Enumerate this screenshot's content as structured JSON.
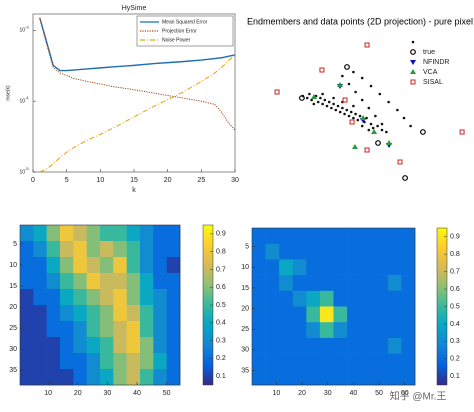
{
  "chart_data": [
    {
      "type": "line",
      "title": "HySime",
      "xlabel": "k",
      "ylabel": "mse(k)",
      "ylog": true,
      "x": [
        1,
        2,
        3,
        4,
        5,
        6,
        8,
        10,
        12,
        15,
        18,
        20,
        22,
        25,
        27,
        28,
        29,
        30
      ],
      "xlim": [
        0,
        30
      ],
      "xticks": [
        0,
        5,
        10,
        15,
        20,
        25,
        30
      ],
      "ylim": [
        1e-05,
        0.0017
      ],
      "yticks": [
        {
          "value": 1e-05,
          "label": "10",
          "exponent": "-5"
        },
        {
          "value": 0.0001,
          "label": "10",
          "exponent": "-4"
        },
        {
          "value": 0.001,
          "label": "10",
          "exponent": "-3"
        }
      ],
      "series": [
        {
          "name": "Mean Squared Error",
          "color": "#1f6fb0",
          "style": "solid",
          "values": [
            0.0015,
            0.0007,
            0.00032,
            0.00027,
            0.00027,
            0.000275,
            0.000285,
            0.000295,
            0.000305,
            0.00032,
            0.00034,
            0.00035,
            0.00036,
            0.00038,
            0.0004,
            0.00041,
            0.00043,
            0.00045
          ]
        },
        {
          "name": "Projection Error",
          "color": "#9c4a1a",
          "style": "dotted",
          "values": [
            0.0015,
            0.00065,
            0.0003,
            0.00025,
            0.00023,
            0.00021,
            0.00019,
            0.000175,
            0.00016,
            0.000145,
            0.00013,
            0.00012,
            0.000112,
            0.0001,
            9e-05,
            7e-05,
            5e-05,
            3.9e-05
          ]
        },
        {
          "name": "Noise Power",
          "color": "#e0a010",
          "style": "dashdot",
          "values": [
            1e-05,
            1.1e-05,
            1.3e-05,
            1.6e-05,
            1.9e-05,
            2.2e-05,
            2.8e-05,
            3.4e-05,
            4.2e-05,
            6e-05,
            8.5e-05,
            0.000105,
            0.00013,
            0.00019,
            0.00025,
            0.0003,
            0.00037,
            0.00045
          ]
        }
      ]
    },
    {
      "type": "scatter",
      "title": "Endmembers and data points (2D projection) - pure pixel",
      "xlim": [
        0,
        100
      ],
      "ylim": [
        0,
        100
      ],
      "series": [
        {
          "marker": "dot",
          "color": "#111111",
          "x": [
            24,
            26,
            27,
            28,
            30,
            31,
            32,
            33,
            34,
            35,
            36,
            37,
            38,
            39,
            40,
            41,
            42,
            43,
            44,
            45,
            46,
            47,
            48,
            49,
            50,
            52,
            53,
            55,
            56,
            58,
            60,
            29,
            33,
            38,
            42,
            47,
            51,
            54,
            47,
            51,
            55,
            59,
            63,
            67,
            70,
            73,
            42,
            45,
            48,
            51,
            54,
            57,
            60,
            62
          ],
          "y": [
            52,
            51,
            53,
            50,
            52,
            49,
            51,
            48,
            50,
            47,
            49,
            46,
            48,
            45,
            47,
            44,
            46,
            43,
            45,
            42,
            44,
            41,
            43,
            40,
            42,
            39,
            41,
            38,
            36,
            37,
            35,
            48,
            53,
            51,
            49,
            47,
            37,
            35,
            64,
            61,
            57,
            53,
            49,
            45,
            41,
            37,
            62,
            58,
            54,
            50,
            46,
            42,
            38,
            34
          ]
        },
        {
          "name": "true",
          "marker": "circle",
          "color": "#000000",
          "x": [
            44.1,
            23.6,
            78.6,
            70.5,
            58.2
          ],
          "y": [
            66.5,
            51,
            34,
            11,
            28.5
          ]
        },
        {
          "name": "NFINDR",
          "marker": "triangle-down",
          "color": "#1010c0",
          "x": [
            40.9,
            51.4,
            63.2
          ],
          "y": [
            57,
            40,
            27.5
          ]
        },
        {
          "name": "VCA",
          "marker": "triangle-up",
          "color": "#2a9a3a",
          "x": [
            29.1,
            40.9,
            51.4,
            56.4,
            63.2,
            47.7
          ],
          "y": [
            51.5,
            57.5,
            41,
            34,
            28.5,
            26.5
          ]
        },
        {
          "name": "SISAL",
          "marker": "square",
          "color": "#d02020",
          "x": [
            53.2,
            32.7,
            12.3,
            43.2,
            46.4,
            96.4,
            53.2,
            68.2
          ],
          "y": [
            77.5,
            65,
            54,
            50,
            39,
            34,
            25,
            19
          ]
        }
      ]
    },
    {
      "type": "heatmap",
      "xlim": [
        0.5,
        54.5
      ],
      "ylim": [
        0.5,
        38.5
      ],
      "xticks": [
        10,
        20,
        30,
        40,
        50
      ],
      "yticks": [
        5,
        10,
        15,
        20,
        25,
        30,
        35
      ],
      "clim": [
        0.05,
        0.95
      ],
      "colorbar_ticks": [
        0.1,
        0.2,
        0.3,
        0.4,
        0.5,
        0.6,
        0.7,
        0.8,
        0.9
      ],
      "z": [
        [
          0.3,
          0.4,
          0.6,
          0.8,
          0.7,
          0.6,
          0.5,
          0.5,
          0.4,
          0.3,
          0.2,
          0.2
        ],
        [
          0.2,
          0.3,
          0.5,
          0.7,
          0.8,
          0.6,
          0.7,
          0.6,
          0.5,
          0.3,
          0.2,
          0.2
        ],
        [
          0.2,
          0.2,
          0.4,
          0.6,
          0.8,
          0.7,
          0.6,
          0.8,
          0.5,
          0.3,
          0.2,
          0.1
        ],
        [
          0.2,
          0.2,
          0.3,
          0.5,
          0.6,
          0.8,
          0.7,
          0.7,
          0.6,
          0.4,
          0.2,
          0.2
        ],
        [
          0.1,
          0.2,
          0.2,
          0.4,
          0.5,
          0.6,
          0.7,
          0.8,
          0.6,
          0.4,
          0.3,
          0.2
        ],
        [
          0.1,
          0.1,
          0.2,
          0.3,
          0.4,
          0.5,
          0.6,
          0.8,
          0.7,
          0.5,
          0.3,
          0.2
        ],
        [
          0.1,
          0.1,
          0.2,
          0.2,
          0.3,
          0.5,
          0.6,
          0.7,
          0.8,
          0.5,
          0.3,
          0.2
        ],
        [
          0.1,
          0.1,
          0.1,
          0.2,
          0.3,
          0.4,
          0.5,
          0.7,
          0.8,
          0.6,
          0.3,
          0.2
        ],
        [
          0.1,
          0.1,
          0.1,
          0.2,
          0.2,
          0.3,
          0.5,
          0.6,
          0.7,
          0.6,
          0.4,
          0.2
        ],
        [
          0.1,
          0.1,
          0.1,
          0.1,
          0.2,
          0.3,
          0.4,
          0.6,
          0.7,
          0.5,
          0.3,
          0.2
        ]
      ]
    },
    {
      "type": "heatmap",
      "xlim": [
        0.5,
        64
      ],
      "ylim": [
        0.5,
        38.5
      ],
      "xticks": [
        10,
        20,
        30,
        40,
        50,
        60
      ],
      "yticks": [
        5,
        10,
        15,
        20,
        25,
        30,
        35
      ],
      "clim": [
        0.05,
        0.95
      ],
      "colorbar_ticks": [
        0.1,
        0.2,
        0.3,
        0.4,
        0.5,
        0.6,
        0.7,
        0.8,
        0.9
      ],
      "z": [
        [
          0.2,
          0.2,
          0.2,
          0.2,
          0.2,
          0.2,
          0.2,
          0.2,
          0.2,
          0.2,
          0.2,
          0.2
        ],
        [
          0.2,
          0.3,
          0.2,
          0.2,
          0.2,
          0.2,
          0.2,
          0.2,
          0.2,
          0.2,
          0.2,
          0.2
        ],
        [
          0.2,
          0.2,
          0.4,
          0.3,
          0.2,
          0.2,
          0.2,
          0.2,
          0.2,
          0.2,
          0.2,
          0.2
        ],
        [
          0.2,
          0.2,
          0.3,
          0.2,
          0.2,
          0.2,
          0.2,
          0.2,
          0.2,
          0.2,
          0.3,
          0.2
        ],
        [
          0.2,
          0.2,
          0.2,
          0.3,
          0.4,
          0.5,
          0.2,
          0.2,
          0.2,
          0.2,
          0.2,
          0.2
        ],
        [
          0.2,
          0.2,
          0.2,
          0.2,
          0.5,
          0.9,
          0.5,
          0.2,
          0.2,
          0.2,
          0.2,
          0.2
        ],
        [
          0.2,
          0.2,
          0.2,
          0.2,
          0.3,
          0.5,
          0.3,
          0.2,
          0.2,
          0.2,
          0.2,
          0.2
        ],
        [
          0.2,
          0.2,
          0.2,
          0.2,
          0.2,
          0.2,
          0.2,
          0.2,
          0.2,
          0.2,
          0.3,
          0.2
        ],
        [
          0.2,
          0.2,
          0.2,
          0.2,
          0.2,
          0.2,
          0.2,
          0.2,
          0.2,
          0.2,
          0.2,
          0.2
        ],
        [
          0.2,
          0.2,
          0.2,
          0.2,
          0.2,
          0.2,
          0.2,
          0.2,
          0.2,
          0.2,
          0.2,
          0.2
        ]
      ]
    }
  ],
  "watermark": "知乎 @Mr.王"
}
